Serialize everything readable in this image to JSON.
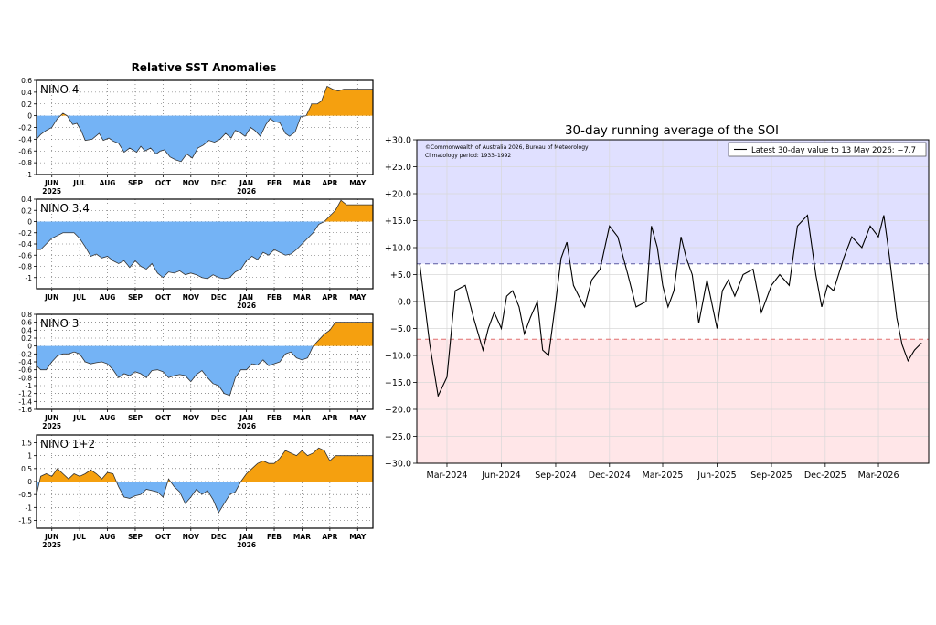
{
  "colors": {
    "positive_fill": "#f5a00f",
    "negative_fill": "#74b3f5",
    "soi_positive_band": "#e0e0ff",
    "soi_negative_band": "#ffe6e8",
    "soi_line": "#000000",
    "upper_threshold_line": "#5a5aa0",
    "lower_threshold_line": "#e07070"
  },
  "chart_data": [
    {
      "type": "area",
      "panel": "NINO 4",
      "title": "Relative SST Anomalies",
      "series_label": "NINO 4",
      "ylim": [
        -1,
        0.6
      ],
      "yticks": [
        -1,
        -0.8,
        -0.6,
        -0.4,
        -0.2,
        0,
        0.2,
        0.4,
        0.6
      ],
      "ytick_labels": [
        "-1",
        "-0.8",
        "-0.6",
        "-0.4",
        "-0.2",
        "0",
        "0.2",
        "0.4",
        "0.6"
      ],
      "month_labels": [
        "JUN",
        "JUL",
        "AUG",
        "SEP",
        "OCT",
        "NOV",
        "DEC",
        "JAN",
        "FEB",
        "MAR",
        "APR",
        "MAY"
      ],
      "year_labels": [
        {
          "month_index": 0,
          "text": "2025"
        },
        {
          "month_index": 7,
          "text": "2026"
        }
      ],
      "grid": true,
      "x": [
        -0.55,
        -0.4,
        -0.2,
        0,
        0.2,
        0.4,
        0.55,
        0.75,
        0.9,
        1.05,
        1.2,
        1.45,
        1.7,
        1.85,
        2.05,
        2.2,
        2.4,
        2.6,
        2.8,
        3.05,
        3.2,
        3.35,
        3.55,
        3.75,
        3.9,
        4.05,
        4.25,
        4.45,
        4.65,
        4.85,
        5.05,
        5.25,
        5.45,
        5.65,
        5.85,
        6.05,
        6.25,
        6.45,
        6.6,
        6.75,
        6.95,
        7.15,
        7.3,
        7.5,
        7.7,
        7.85,
        8.0,
        8.2,
        8.4,
        8.55,
        8.75,
        8.95,
        9.15,
        9.35,
        9.55,
        9.7,
        9.9,
        10.1,
        10.3,
        10.5,
        10.65,
        10.8,
        11.0,
        11.2,
        11.4,
        11.55
      ],
      "y": [
        -0.4,
        -0.32,
        -0.25,
        -0.2,
        -0.05,
        0.04,
        0.0,
        -0.15,
        -0.13,
        -0.25,
        -0.42,
        -0.4,
        -0.3,
        -0.42,
        -0.38,
        -0.43,
        -0.47,
        -0.62,
        -0.55,
        -0.62,
        -0.52,
        -0.6,
        -0.55,
        -0.65,
        -0.6,
        -0.58,
        -0.7,
        -0.75,
        -0.78,
        -0.65,
        -0.72,
        -0.55,
        -0.5,
        -0.42,
        -0.45,
        -0.4,
        -0.3,
        -0.38,
        -0.25,
        -0.28,
        -0.35,
        -0.2,
        -0.25,
        -0.35,
        -0.15,
        -0.05,
        -0.1,
        -0.12,
        -0.3,
        -0.35,
        -0.28,
        -0.02,
        0.0,
        0.2,
        0.2,
        0.25,
        0.5,
        0.45,
        0.42,
        0.45,
        0.45,
        0.45,
        0.45,
        0.45,
        0.45,
        0.45
      ]
    },
    {
      "type": "area",
      "panel": "NINO 3.4",
      "series_label": "NINO 3.4",
      "ylim": [
        -1.2,
        0.4
      ],
      "yticks": [
        -1,
        -0.8,
        -0.6,
        -0.4,
        -0.2,
        0,
        0.2,
        0.4
      ],
      "ytick_labels": [
        "-1",
        "-0.8",
        "-0.6",
        "-0.4",
        "-0.2",
        "0",
        "0.2",
        "0.4"
      ],
      "month_labels": [
        "JUN",
        "JUL",
        "AUG",
        "SEP",
        "OCT",
        "NOV",
        "DEC",
        "JAN",
        "FEB",
        "MAR",
        "APR",
        "MAY"
      ],
      "year_labels": [
        {
          "month_index": 7,
          "text": "2026"
        }
      ],
      "grid": true,
      "x": [
        -0.55,
        -0.4,
        -0.2,
        0,
        0.2,
        0.4,
        0.6,
        0.8,
        1.0,
        1.2,
        1.4,
        1.6,
        1.8,
        2.0,
        2.2,
        2.4,
        2.6,
        2.8,
        3.0,
        3.2,
        3.4,
        3.6,
        3.8,
        4.0,
        4.2,
        4.4,
        4.6,
        4.8,
        5.0,
        5.2,
        5.4,
        5.6,
        5.8,
        6.0,
        6.2,
        6.4,
        6.6,
        6.8,
        7.0,
        7.2,
        7.4,
        7.6,
        7.8,
        8.0,
        8.2,
        8.4,
        8.6,
        8.8,
        9.0,
        9.2,
        9.4,
        9.6,
        9.8,
        10.0,
        10.2,
        10.4,
        10.6,
        10.8,
        11.0,
        11.2,
        11.4,
        11.55
      ],
      "y": [
        -0.5,
        -0.5,
        -0.4,
        -0.3,
        -0.25,
        -0.2,
        -0.2,
        -0.2,
        -0.3,
        -0.45,
        -0.62,
        -0.58,
        -0.65,
        -0.62,
        -0.7,
        -0.75,
        -0.7,
        -0.82,
        -0.7,
        -0.8,
        -0.85,
        -0.75,
        -0.92,
        -1.0,
        -0.9,
        -0.92,
        -0.88,
        -0.95,
        -0.92,
        -0.95,
        -1.0,
        -1.02,
        -0.95,
        -1.0,
        -1.02,
        -1.0,
        -0.9,
        -0.85,
        -0.7,
        -0.62,
        -0.68,
        -0.55,
        -0.6,
        -0.5,
        -0.55,
        -0.6,
        -0.58,
        -0.5,
        -0.4,
        -0.3,
        -0.2,
        -0.05,
        0.0,
        0.1,
        0.2,
        0.38,
        0.3,
        0.3,
        0.3,
        0.3,
        0.3,
        0.3
      ]
    },
    {
      "type": "area",
      "panel": "NINO 3",
      "series_label": "NINO 3",
      "ylim": [
        -1.6,
        0.8
      ],
      "yticks": [
        -1.6,
        -1.4,
        -1.2,
        -1,
        -0.8,
        -0.6,
        -0.4,
        -0.2,
        0,
        0.2,
        0.4,
        0.6,
        0.8
      ],
      "ytick_labels": [
        "-1.6",
        "-1.4",
        "-1.2",
        "-1",
        "-0.8",
        "-0.6",
        "-0.4",
        "-0.2",
        "0",
        "0.2",
        "0.4",
        "0.6",
        "0.8"
      ],
      "month_labels": [
        "JUN",
        "JUL",
        "AUG",
        "SEP",
        "OCT",
        "NOV",
        "DEC",
        "JAN",
        "FEB",
        "MAR",
        "APR",
        "MAY"
      ],
      "year_labels": [
        {
          "month_index": 0,
          "text": "2025"
        },
        {
          "month_index": 7,
          "text": "2026"
        }
      ],
      "grid": true,
      "x": [
        -0.55,
        -0.4,
        -0.2,
        0,
        0.2,
        0.4,
        0.6,
        0.8,
        1.0,
        1.2,
        1.4,
        1.6,
        1.8,
        2.0,
        2.2,
        2.4,
        2.6,
        2.8,
        3.0,
        3.2,
        3.4,
        3.6,
        3.8,
        4.0,
        4.2,
        4.4,
        4.6,
        4.8,
        5.0,
        5.2,
        5.4,
        5.6,
        5.8,
        6.0,
        6.2,
        6.4,
        6.6,
        6.8,
        7.0,
        7.2,
        7.4,
        7.6,
        7.8,
        8.0,
        8.2,
        8.4,
        8.6,
        8.8,
        9.0,
        9.2,
        9.4,
        9.6,
        9.8,
        10.0,
        10.2,
        10.4,
        10.6,
        10.8,
        11.0,
        11.2,
        11.55
      ],
      "y": [
        -0.5,
        -0.6,
        -0.6,
        -0.4,
        -0.25,
        -0.2,
        -0.2,
        -0.15,
        -0.2,
        -0.4,
        -0.45,
        -0.42,
        -0.4,
        -0.45,
        -0.6,
        -0.8,
        -0.7,
        -0.75,
        -0.65,
        -0.7,
        -0.8,
        -0.62,
        -0.6,
        -0.65,
        -0.8,
        -0.75,
        -0.72,
        -0.75,
        -0.9,
        -0.72,
        -0.62,
        -0.8,
        -0.95,
        -1.0,
        -1.2,
        -1.25,
        -0.8,
        -0.6,
        -0.6,
        -0.45,
        -0.48,
        -0.35,
        -0.5,
        -0.45,
        -0.4,
        -0.2,
        -0.15,
        -0.3,
        -0.35,
        -0.3,
        0.0,
        0.15,
        0.3,
        0.4,
        0.6,
        0.6,
        0.6,
        0.6,
        0.6,
        0.6,
        0.6
      ]
    },
    {
      "type": "area",
      "panel": "NINO 1+2",
      "series_label": "NINO 1+2",
      "ylim": [
        -1.8,
        1.8
      ],
      "yticks": [
        -1.5,
        -1,
        -0.5,
        0,
        0.5,
        1,
        1.5
      ],
      "ytick_labels": [
        "-1.5",
        "-1",
        "-0.5",
        "0",
        "0.5",
        "1",
        "1.5"
      ],
      "month_labels": [
        "JUN",
        "JUL",
        "AUG",
        "SEP",
        "OCT",
        "NOV",
        "DEC",
        "JAN",
        "FEB",
        "MAR",
        "APR",
        "MAY"
      ],
      "year_labels": [
        {
          "month_index": 0,
          "text": "2025"
        },
        {
          "month_index": 7,
          "text": "2026"
        }
      ],
      "grid": true,
      "x": [
        -0.55,
        -0.4,
        -0.2,
        0,
        0.2,
        0.4,
        0.6,
        0.8,
        1.0,
        1.2,
        1.4,
        1.6,
        1.8,
        2.0,
        2.2,
        2.4,
        2.6,
        2.8,
        3.0,
        3.2,
        3.4,
        3.6,
        3.8,
        4.0,
        4.2,
        4.4,
        4.6,
        4.8,
        5.0,
        5.2,
        5.4,
        5.6,
        5.8,
        6.0,
        6.2,
        6.4,
        6.6,
        6.8,
        7.0,
        7.2,
        7.4,
        7.6,
        7.8,
        8.0,
        8.2,
        8.4,
        8.6,
        8.8,
        9.0,
        9.2,
        9.4,
        9.6,
        9.8,
        10.0,
        10.2,
        10.4,
        10.6,
        10.8,
        11.0,
        11.2,
        11.55
      ],
      "y": [
        -0.5,
        0.2,
        0.3,
        0.2,
        0.5,
        0.3,
        0.1,
        0.3,
        0.2,
        0.3,
        0.45,
        0.3,
        0.1,
        0.35,
        0.3,
        -0.2,
        -0.6,
        -0.65,
        -0.55,
        -0.5,
        -0.3,
        -0.35,
        -0.4,
        -0.6,
        0.1,
        -0.2,
        -0.4,
        -0.85,
        -0.6,
        -0.3,
        -0.5,
        -0.35,
        -0.7,
        -1.2,
        -0.85,
        -0.5,
        -0.4,
        0.0,
        0.3,
        0.5,
        0.7,
        0.8,
        0.7,
        0.7,
        0.9,
        1.2,
        1.1,
        1.0,
        1.2,
        1.0,
        1.1,
        1.3,
        1.2,
        0.8,
        1.0,
        1.0,
        1.0,
        1.0,
        1.0,
        1.0,
        1.0
      ]
    },
    {
      "type": "line",
      "title": "30-day running average of the SOI",
      "legend": "Latest 30-day value to 13 May 2026: −7.7",
      "legend_position": "top-right",
      "annotation_lines": [
        "©Commonwealth of Australia 2026, Bureau of Meteorology",
        "Climatology period: 1933–1992"
      ],
      "ylim": [
        -30,
        30
      ],
      "yticks": [
        -30,
        -25,
        -20,
        -15,
        -10,
        -5,
        0,
        5,
        10,
        15,
        20,
        25,
        30
      ],
      "ytick_labels": [
        "−30.0",
        "−25.0",
        "−20.0",
        "−15.0",
        "−10.0",
        "−5.0",
        "0.0",
        "+5.0",
        "+10.0",
        "+15.0",
        "+20.0",
        "+25.0",
        "+30.0"
      ],
      "xticks": [
        "Mar-2024",
        "Jun-2024",
        "Sep-2024",
        "Dec-2024",
        "Mar-2025",
        "Jun-2025",
        "Sep-2025",
        "Dec-2025",
        "Mar-2026"
      ],
      "xlim": [
        "2024-01-10",
        "2026-05-25"
      ],
      "upper_threshold": 7,
      "lower_threshold": -7,
      "grid": true,
      "x": [
        "2024-01-15",
        "2024-02-01",
        "2024-02-15",
        "2024-03-01",
        "2024-03-15",
        "2024-04-01",
        "2024-04-15",
        "2024-05-01",
        "2024-05-10",
        "2024-05-20",
        "2024-06-01",
        "2024-06-10",
        "2024-06-20",
        "2024-07-01",
        "2024-07-10",
        "2024-07-20",
        "2024-08-01",
        "2024-08-10",
        "2024-08-20",
        "2024-09-01",
        "2024-09-10",
        "2024-09-20",
        "2024-10-01",
        "2024-10-10",
        "2024-10-20",
        "2024-11-01",
        "2024-11-15",
        "2024-12-01",
        "2024-12-15",
        "2025-01-01",
        "2025-01-15",
        "2025-02-01",
        "2025-02-10",
        "2025-02-20",
        "2025-03-01",
        "2025-03-10",
        "2025-03-20",
        "2025-04-01",
        "2025-04-10",
        "2025-04-20",
        "2025-05-01",
        "2025-05-15",
        "2025-06-01",
        "2025-06-10",
        "2025-06-20",
        "2025-07-01",
        "2025-07-15",
        "2025-08-01",
        "2025-08-15",
        "2025-09-01",
        "2025-09-15",
        "2025-10-01",
        "2025-10-15",
        "2025-11-01",
        "2025-11-15",
        "2025-11-25",
        "2025-12-05",
        "2025-12-15",
        "2026-01-01",
        "2026-01-15",
        "2026-02-01",
        "2026-02-15",
        "2026-03-01",
        "2026-03-10",
        "2026-03-20",
        "2026-04-01",
        "2026-04-10",
        "2026-04-20",
        "2026-05-01",
        "2026-05-13"
      ],
      "y": [
        7,
        -8,
        -17.5,
        -14,
        2,
        3,
        -3,
        -9,
        -5,
        -2,
        -5,
        1,
        2,
        -1,
        -6,
        -3,
        0,
        -9,
        -10,
        0,
        8,
        11,
        3,
        1,
        -1,
        4,
        6,
        14,
        12,
        5,
        -1,
        0,
        14,
        10,
        3,
        -1,
        2,
        12,
        8,
        5,
        -4,
        4,
        -5,
        2,
        4,
        1,
        5,
        6,
        -2,
        3,
        5,
        3,
        14,
        16,
        5,
        -1,
        3,
        2,
        8,
        12,
        10,
        14,
        12,
        16,
        8,
        -3,
        -8,
        -11,
        -9,
        -7.7
      ]
    }
  ]
}
